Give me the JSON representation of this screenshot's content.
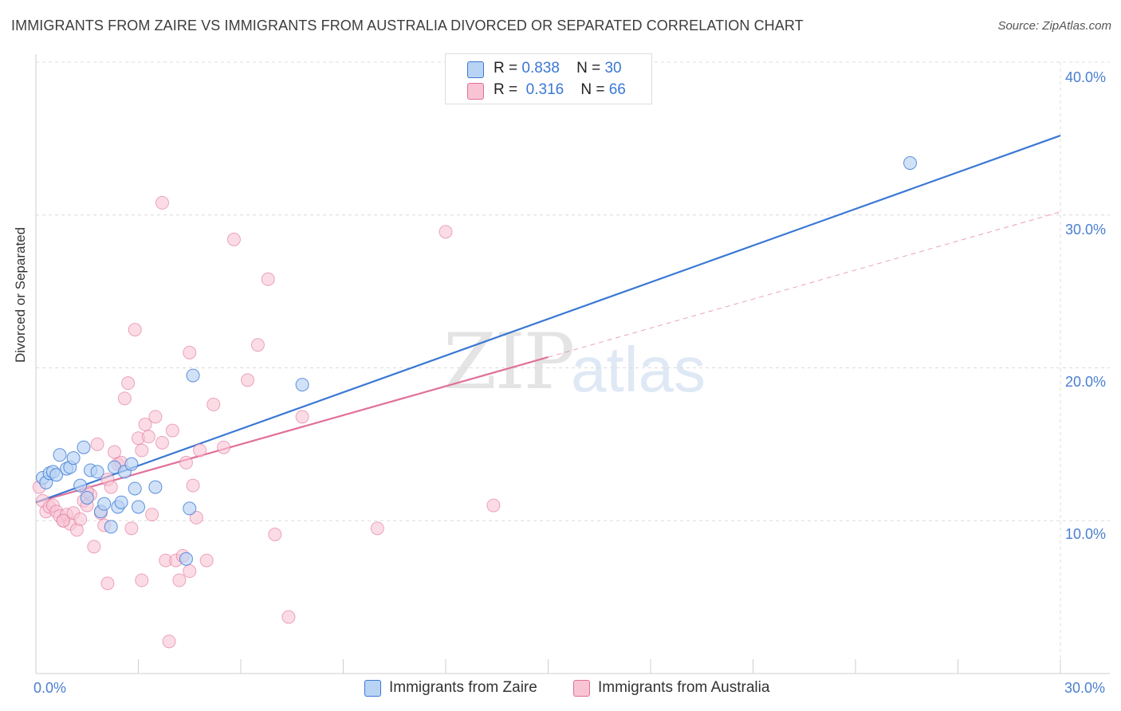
{
  "title": "IMMIGRANTS FROM ZAIRE VS IMMIGRANTS FROM AUSTRALIA DIVORCED OR SEPARATED CORRELATION CHART",
  "source": "Source: ZipAtlas.com",
  "watermark": {
    "zip": "ZIP",
    "atlas": "atlas"
  },
  "legend": {
    "zaire": {
      "r_label": "R =",
      "r_value": "0.838",
      "n_label": "N =",
      "n_value": "30"
    },
    "australia": {
      "r_label": "R =",
      "r_value": "0.316",
      "n_label": "N =",
      "n_value": "66"
    }
  },
  "chart_data": {
    "type": "scatter",
    "title": "IMMIGRANTS FROM ZAIRE VS IMMIGRANTS FROM AUSTRALIA DIVORCED OR SEPARATED CORRELATION CHART",
    "xlabel": "",
    "ylabel": "Divorced or Separated",
    "xlim": [
      0,
      30
    ],
    "ylim": [
      0,
      40
    ],
    "x_tick_labels": [
      "0.0%",
      "30.0%"
    ],
    "y_ticks": [
      10,
      20,
      30,
      40
    ],
    "y_tick_labels": [
      "10.0%",
      "20.0%",
      "30.0%",
      "40.0%"
    ],
    "legend_position": "bottom",
    "colors": {
      "zaire": "#3a78d4",
      "zaire_fill": "#b9d3f4",
      "australia": "#e0709a",
      "australia_fill": "#f8c4d4"
    },
    "series": [
      {
        "name": "Immigrants from Zaire",
        "R": 0.838,
        "N": 30,
        "trend": {
          "x0": 0.0,
          "y0": 11.2,
          "x1": 30.0,
          "y1": 35.2,
          "dashed_after": null
        },
        "points": [
          [
            0.2,
            12.8
          ],
          [
            0.3,
            12.5
          ],
          [
            0.4,
            13.1
          ],
          [
            0.5,
            13.2
          ],
          [
            0.6,
            13.0
          ],
          [
            0.7,
            14.3
          ],
          [
            0.9,
            13.4
          ],
          [
            1.0,
            13.5
          ],
          [
            1.1,
            14.1
          ],
          [
            1.3,
            12.3
          ],
          [
            1.4,
            14.8
          ],
          [
            1.5,
            11.5
          ],
          [
            1.6,
            13.3
          ],
          [
            1.8,
            13.2
          ],
          [
            1.9,
            10.6
          ],
          [
            2.0,
            11.1
          ],
          [
            2.2,
            9.6
          ],
          [
            2.3,
            13.5
          ],
          [
            2.4,
            10.9
          ],
          [
            2.5,
            11.2
          ],
          [
            2.6,
            13.2
          ],
          [
            2.8,
            13.7
          ],
          [
            2.9,
            12.1
          ],
          [
            3.0,
            10.9
          ],
          [
            3.5,
            12.2
          ],
          [
            4.4,
            7.5
          ],
          [
            4.5,
            10.8
          ],
          [
            4.6,
            19.5
          ],
          [
            7.8,
            18.9
          ],
          [
            25.6,
            33.4
          ]
        ]
      },
      {
        "name": "Immigrants from Australia",
        "R": 0.316,
        "N": 66,
        "trend": {
          "x0": 0.0,
          "y0": 11.2,
          "x1": 15.0,
          "y1": 20.7,
          "dashed_x1": 30.0,
          "dashed_y1": 30.2
        },
        "points": [
          [
            0.1,
            12.2
          ],
          [
            0.2,
            11.3
          ],
          [
            0.3,
            10.6
          ],
          [
            0.4,
            10.9
          ],
          [
            0.5,
            11.0
          ],
          [
            0.6,
            10.6
          ],
          [
            0.7,
            10.3
          ],
          [
            0.8,
            10.0
          ],
          [
            0.9,
            10.4
          ],
          [
            1.0,
            9.8
          ],
          [
            1.1,
            10.5
          ],
          [
            1.2,
            9.4
          ],
          [
            1.3,
            10.1
          ],
          [
            1.4,
            11.3
          ],
          [
            1.5,
            11.0
          ],
          [
            1.6,
            11.7
          ],
          [
            1.7,
            8.3
          ],
          [
            1.8,
            15.0
          ],
          [
            1.9,
            10.5
          ],
          [
            2.0,
            9.7
          ],
          [
            2.1,
            12.7
          ],
          [
            2.2,
            12.2
          ],
          [
            2.3,
            14.5
          ],
          [
            2.4,
            13.7
          ],
          [
            2.5,
            13.8
          ],
          [
            2.6,
            18.0
          ],
          [
            2.7,
            19.0
          ],
          [
            2.8,
            9.5
          ],
          [
            2.9,
            22.5
          ],
          [
            3.0,
            15.4
          ],
          [
            3.1,
            14.6
          ],
          [
            3.2,
            16.3
          ],
          [
            3.3,
            15.5
          ],
          [
            3.4,
            10.4
          ],
          [
            3.5,
            16.8
          ],
          [
            3.7,
            15.1
          ],
          [
            3.8,
            7.4
          ],
          [
            4.0,
            15.9
          ],
          [
            4.1,
            7.4
          ],
          [
            4.2,
            6.1
          ],
          [
            4.4,
            13.8
          ],
          [
            4.5,
            21.0
          ],
          [
            4.6,
            12.3
          ],
          [
            4.7,
            10.2
          ],
          [
            4.8,
            14.6
          ],
          [
            5.0,
            7.4
          ],
          [
            5.2,
            17.6
          ],
          [
            5.5,
            14.8
          ],
          [
            5.8,
            28.4
          ],
          [
            6.2,
            19.2
          ],
          [
            6.5,
            21.5
          ],
          [
            6.8,
            25.8
          ],
          [
            7.0,
            9.1
          ],
          [
            7.4,
            3.7
          ],
          [
            7.8,
            16.8
          ],
          [
            10.0,
            9.5
          ],
          [
            12.0,
            28.9
          ],
          [
            13.4,
            11.0
          ],
          [
            3.7,
            30.8
          ],
          [
            2.1,
            5.9
          ],
          [
            3.1,
            6.1
          ],
          [
            4.3,
            7.7
          ],
          [
            1.5,
            11.9
          ],
          [
            0.8,
            10.0
          ],
          [
            3.9,
            2.1
          ],
          [
            4.5,
            6.7
          ]
        ]
      }
    ]
  },
  "bottom_legend": {
    "zaire": "Immigrants from Zaire",
    "australia": "Immigrants from Australia"
  }
}
